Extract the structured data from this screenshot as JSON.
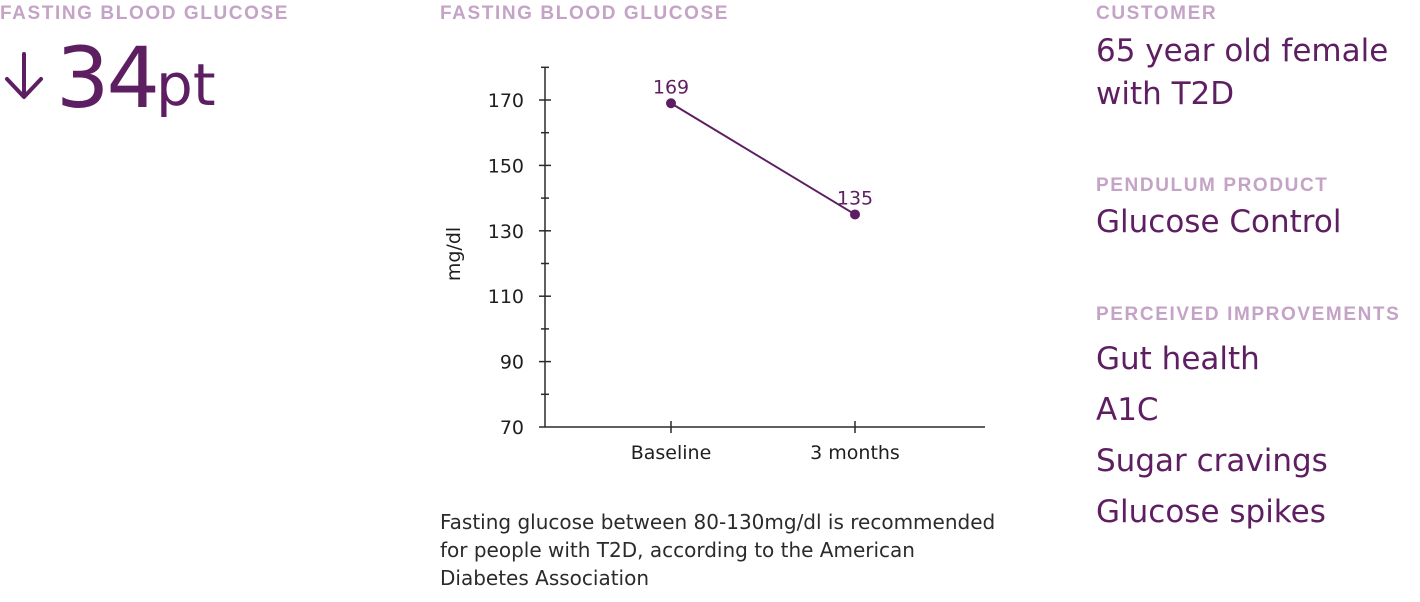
{
  "metric": {
    "label": "FASTING BLOOD GLUCOSE",
    "value": "34",
    "unit": "pt",
    "direction_icon": "arrow-down-icon",
    "color": "#5e1e62"
  },
  "chart_section": {
    "label": "FASTING BLOOD GLUCOSE",
    "footnote": "Fasting glucose between 80-130mg/dl is recommended for people with T2D, according to the American Diabetes Association"
  },
  "chart_data": {
    "type": "line",
    "title": "FASTING BLOOD GLUCOSE",
    "categories": [
      "Baseline",
      "3 months"
    ],
    "series": [
      {
        "values": [
          169,
          135
        ],
        "labels": [
          "169",
          "135"
        ]
      }
    ],
    "xlabel": "",
    "ylabel": "mg/dl",
    "ylim": [
      70,
      180
    ],
    "yticks": [
      70,
      90,
      110,
      130,
      150,
      170
    ],
    "grid": false,
    "line_color": "#5e1e62"
  },
  "profile": {
    "customer_label": "CUSTOMER",
    "customer_value": "65 year old female with T2D",
    "product_label": "PENDULUM PRODUCT",
    "product_value": "Glucose Control",
    "improvements_label": "PERCEIVED IMPROVEMENTS",
    "improvements": [
      "Gut health",
      "A1C",
      "Sugar cravings",
      "Glucose spikes"
    ]
  },
  "colors": {
    "accent": "#5e1e62",
    "muted_label": "#c4a3c6",
    "body_text": "#2b2b2b"
  }
}
